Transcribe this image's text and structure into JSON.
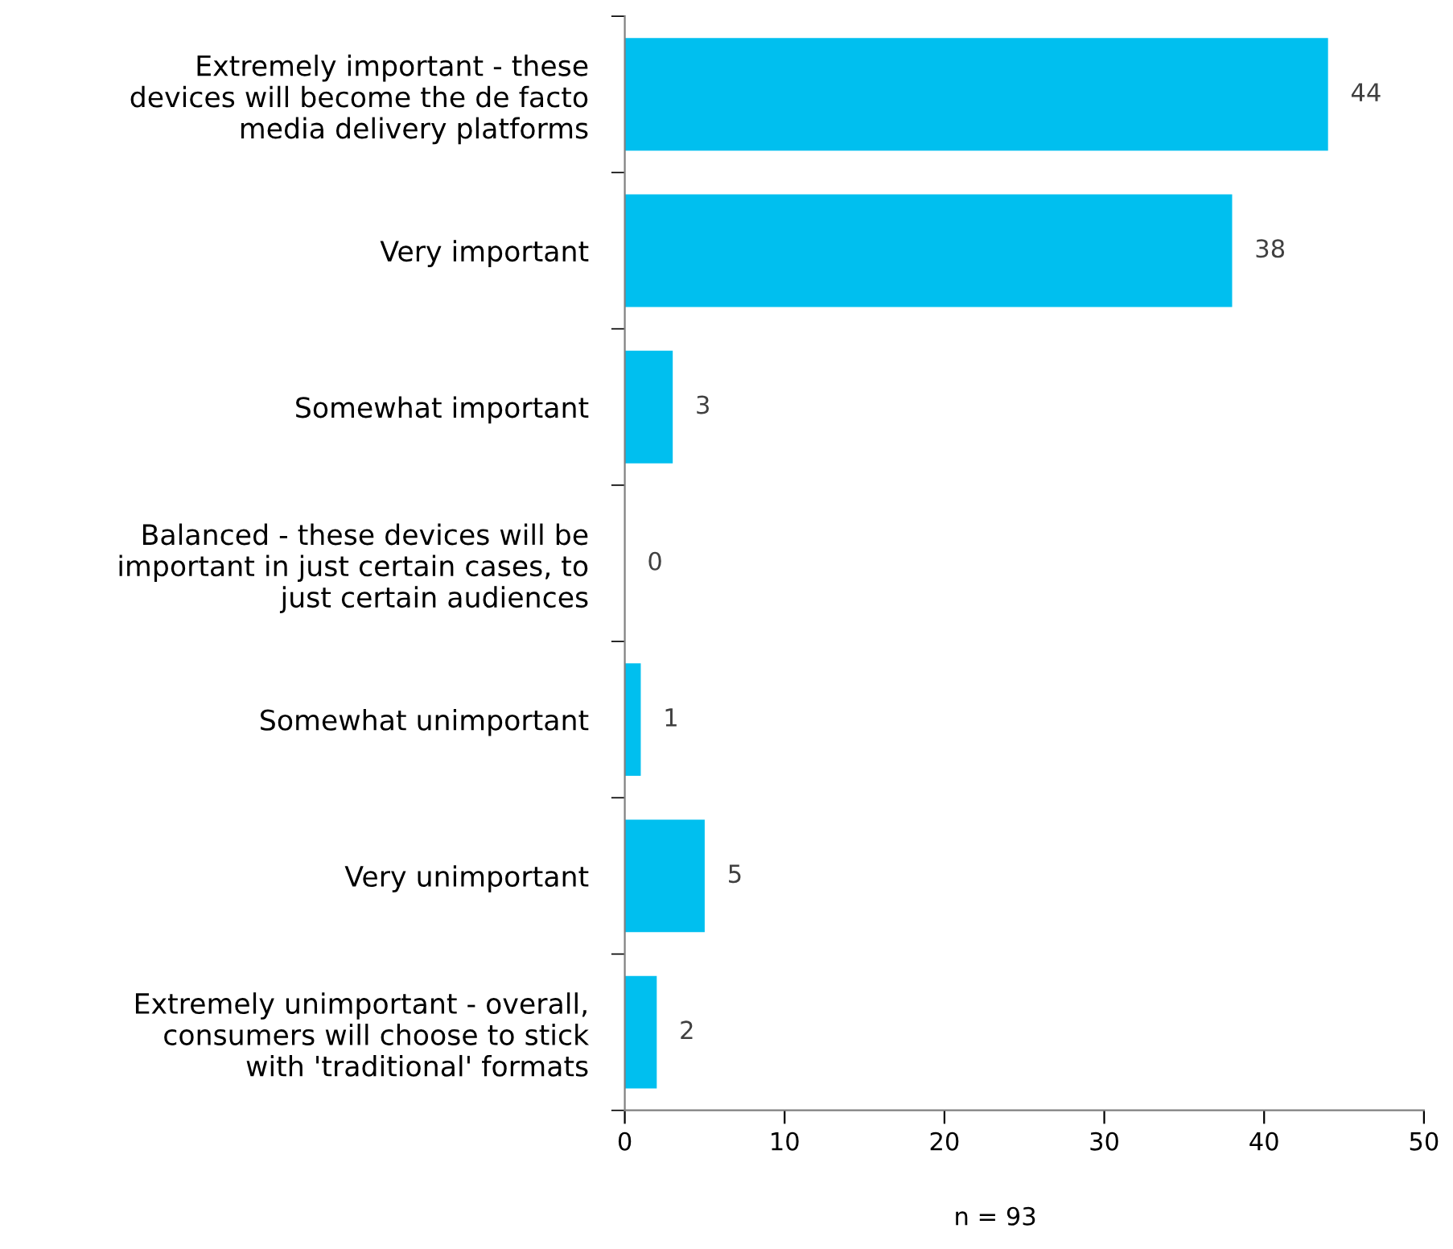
{
  "chart_data": {
    "type": "bar",
    "orientation": "horizontal",
    "categories": [
      "Extremely important - these\ndevices will become the de facto\nmedia delivery platforms",
      "Very important",
      "Somewhat important",
      "Balanced - these devices will be\nimportant in just certain cases, to\njust certain audiences",
      "Somewhat unimportant",
      "Very unimportant",
      "Extremely unimportant - overall,\nconsumers will choose to stick\nwith 'traditional' formats"
    ],
    "values": [
      44,
      38,
      3,
      0,
      1,
      5,
      2
    ],
    "color": "#00bfef",
    "xlim": [
      0,
      50
    ],
    "xticks": [
      0,
      10,
      20,
      30,
      40,
      50
    ],
    "data_labels": true,
    "grid": false,
    "legend": false,
    "annotations": [
      "n = 93"
    ]
  }
}
